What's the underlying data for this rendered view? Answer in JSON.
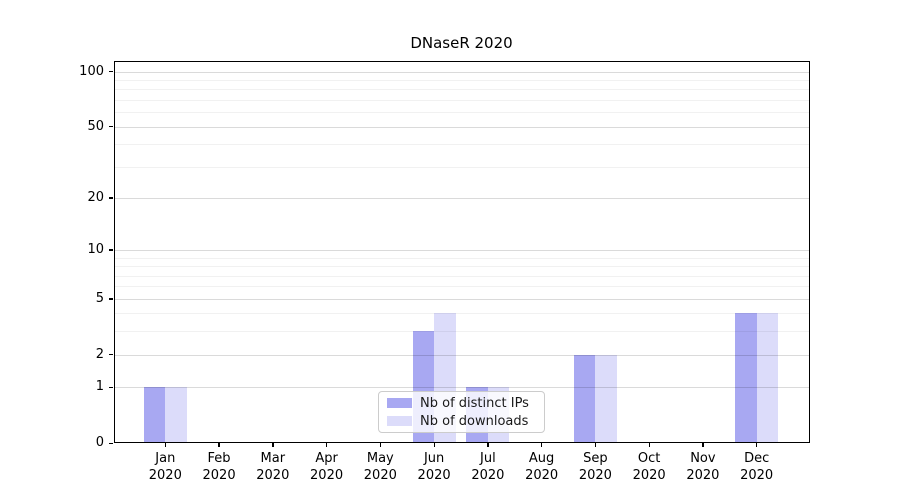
{
  "title": "DNaseR 2020",
  "chart_data": {
    "type": "bar",
    "title": "DNaseR 2020",
    "categories": [
      "Jan 2020",
      "Feb 2020",
      "Mar 2020",
      "Apr 2020",
      "May 2020",
      "Jun 2020",
      "Jul 2020",
      "Aug 2020",
      "Sep 2020",
      "Oct 2020",
      "Nov 2020",
      "Dec 2020"
    ],
    "series": [
      {
        "name": "Nb of distinct IPs",
        "color": "#a8a8f2",
        "values": [
          1,
          0,
          0,
          0,
          0,
          3,
          1,
          0,
          2,
          0,
          0,
          4
        ]
      },
      {
        "name": "Nb of downloads",
        "color": "#dcdcfa",
        "values": [
          1,
          0,
          0,
          0,
          0,
          4,
          1,
          0,
          2,
          0,
          0,
          4
        ]
      }
    ],
    "xlabel": "",
    "ylabel": "",
    "yscale": "log1p",
    "ylim": [
      0,
      115
    ],
    "y_ticks": [
      0,
      1,
      2,
      5,
      10,
      20,
      50,
      100
    ],
    "y_minor_grid": [
      3,
      4,
      6,
      7,
      8,
      9,
      30,
      40,
      60,
      70,
      80,
      90
    ],
    "grid": "horizontal",
    "legend_position": "lower center"
  },
  "legend": {
    "items": [
      {
        "label": "Nb of distinct IPs",
        "color": "#a8a8f2"
      },
      {
        "label": "Nb of downloads",
        "color": "#dcdcfa"
      }
    ]
  }
}
